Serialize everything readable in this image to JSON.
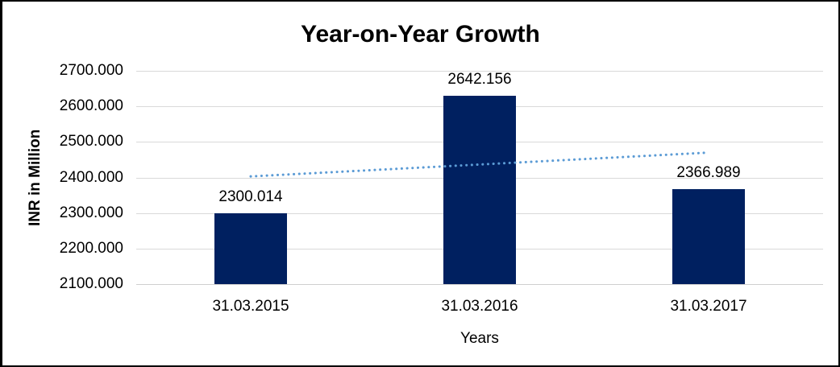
{
  "chart_data": {
    "type": "bar",
    "title": "Year-on-Year Growth",
    "xlabel": "Years",
    "ylabel": "INR in Million",
    "categories": [
      "31.03.2015",
      "31.03.2016",
      "31.03.2017"
    ],
    "values": [
      2300.014,
      2642.156,
      2366.989
    ],
    "value_labels": [
      "2300.014",
      "2642.156",
      "2366.989"
    ],
    "ylim": [
      2100,
      2700
    ],
    "ytick_step": 100,
    "ytick_labels": [
      "2700.000",
      "2600.000",
      "2500.000",
      "2400.000",
      "2300.000",
      "2200.000",
      "2100.000"
    ],
    "grid": true,
    "legend_position": "none",
    "bar_color": "#002060",
    "gridline_color": "#d9d9d9",
    "trendline": {
      "type": "linear",
      "style": "dotted",
      "color": "#5b9bd5",
      "start_value": 2403,
      "end_value": 2470
    }
  }
}
